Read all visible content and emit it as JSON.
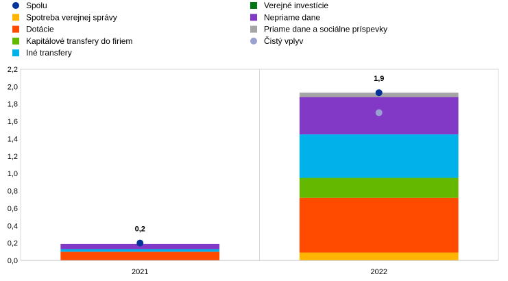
{
  "chart_data": {
    "type": "bar",
    "stacked": true,
    "categories": [
      "2021",
      "2022"
    ],
    "ylim": [
      0,
      2.2
    ],
    "yticks": [
      "0,0",
      "0,2",
      "0,4",
      "0,6",
      "0,8",
      "1,0",
      "1,2",
      "1,4",
      "1,6",
      "1,8",
      "2,0",
      "2,2"
    ],
    "ytick_values": [
      0,
      0.2,
      0.4,
      0.6,
      0.8,
      1.0,
      1.2,
      1.4,
      1.6,
      1.8,
      2.0,
      2.2
    ],
    "grid": true,
    "legend_position": "top",
    "series": [
      {
        "name": "Spotreba verejnej správy",
        "color": "#ffb400",
        "values": [
          0.0,
          0.09
        ]
      },
      {
        "name": "Dotácie",
        "color": "#ff4b00",
        "values": [
          0.1,
          0.63
        ]
      },
      {
        "name": "Kapitálové transfery do firiem",
        "color": "#65b800",
        "values": [
          0.0,
          0.23
        ]
      },
      {
        "name": "Iné transfery",
        "color": "#00b1ea",
        "values": [
          0.03,
          0.5
        ]
      },
      {
        "name": "Verejné investície",
        "color": "#007816",
        "values": [
          0.0,
          0.0
        ]
      },
      {
        "name": "Nepriame dane",
        "color": "#8139c6",
        "values": [
          0.06,
          0.43
        ]
      },
      {
        "name": "Priame dane a sociálne príspevky",
        "color": "#a5a5a5",
        "values": [
          0.0,
          0.05
        ]
      }
    ],
    "points": [
      {
        "name": "Spolu",
        "color": "#003299",
        "values": [
          0.2,
          1.93
        ]
      },
      {
        "name": "Čistý vplyv",
        "color": "#98a1d0",
        "values": [
          null,
          1.7
        ]
      }
    ],
    "total_labels": [
      "0,2",
      "1,9"
    ],
    "legend": [
      {
        "name": "Spolu",
        "color": "#003299",
        "marker": "circle"
      },
      {
        "name": "Spotreba verejnej správy",
        "color": "#ffb400",
        "marker": "square"
      },
      {
        "name": "Dotácie",
        "color": "#ff4b00",
        "marker": "square"
      },
      {
        "name": "Kapitálové transfery do firiem",
        "color": "#65b800",
        "marker": "square"
      },
      {
        "name": "Iné transfery",
        "color": "#00b1ea",
        "marker": "square"
      },
      {
        "name": "Verejné investície",
        "color": "#007816",
        "marker": "square"
      },
      {
        "name": "Nepriame dane",
        "color": "#8139c6",
        "marker": "square"
      },
      {
        "name": "Priame dane a sociálne príspevky",
        "color": "#a5a5a5",
        "marker": "square"
      },
      {
        "name": "Čistý vplyv",
        "color": "#98a1d0",
        "marker": "circle"
      }
    ]
  }
}
